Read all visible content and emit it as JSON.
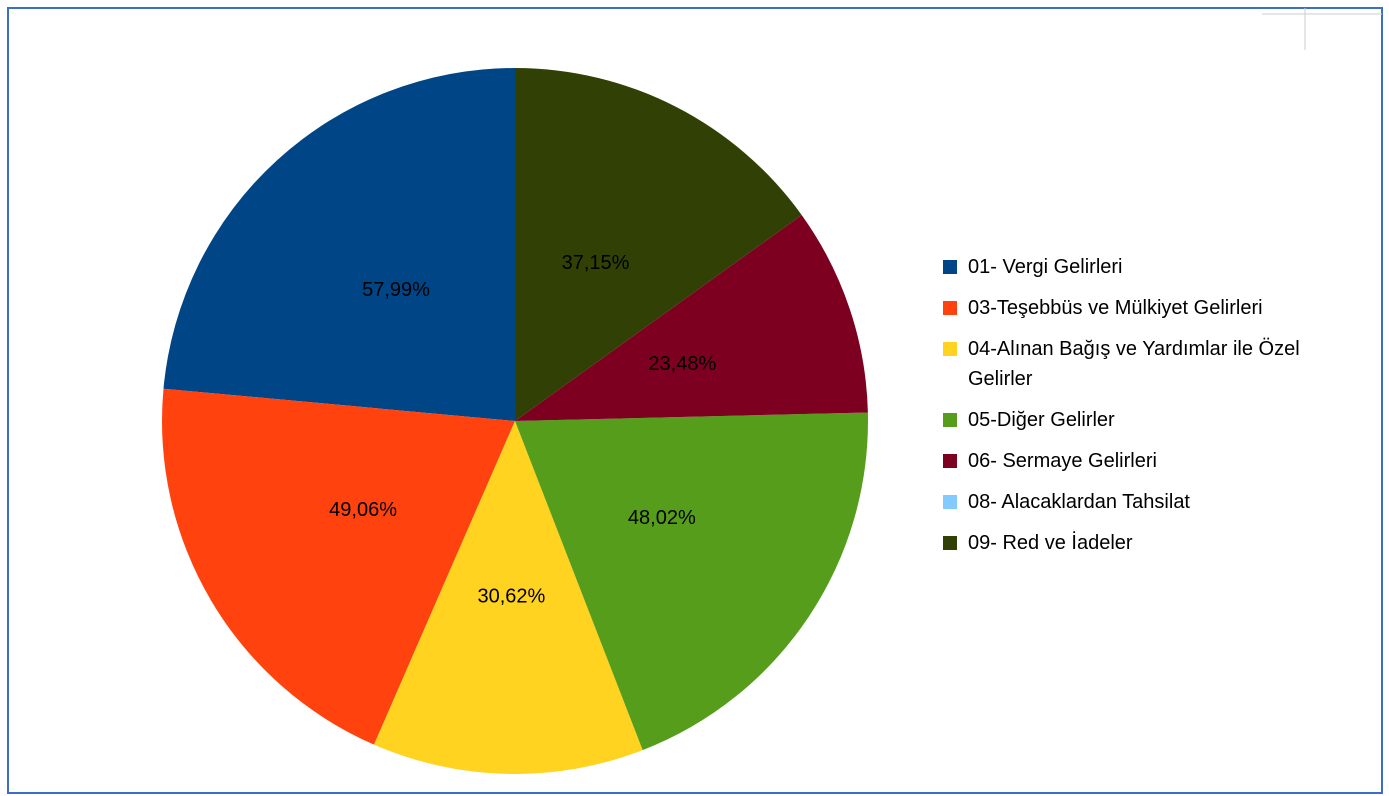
{
  "chart_data": {
    "type": "pie",
    "categories": [
      "01- Vergi Gelirleri",
      "03-Teşebbüs ve Mülkiyet Gelirleri",
      "04-Alınan Bağış ve Yardımlar ile Özel Gelirler",
      "05-Diğer Gelirler",
      "06- Sermaye Gelirleri",
      "08- Alacaklardan Tahsilat",
      "09- Red ve İadeler"
    ],
    "values": [
      57.99,
      49.06,
      30.62,
      48.02,
      23.48,
      0,
      37.15
    ],
    "value_labels": [
      "57,99%",
      "49,06%",
      "30,62%",
      "48,02%",
      "23,48%",
      null,
      "37,15%"
    ],
    "colors": [
      "#004586",
      "#ff420e",
      "#ffd320",
      "#579d1c",
      "#7e0021",
      "#83caff",
      "#314004"
    ],
    "legend": "right"
  }
}
